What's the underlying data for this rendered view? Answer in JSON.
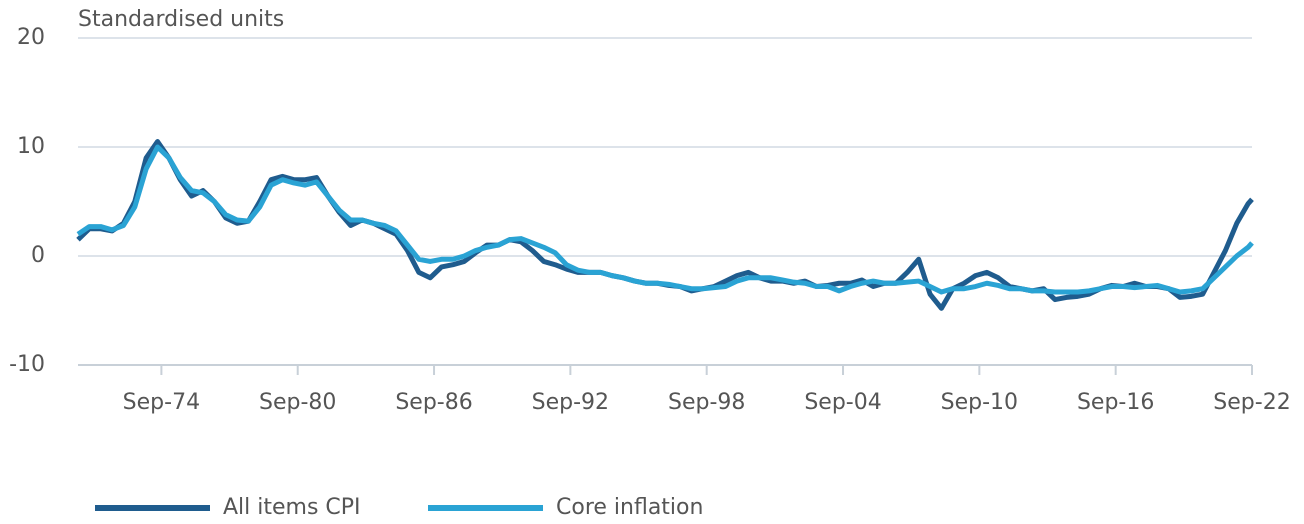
{
  "chart_data": {
    "type": "line",
    "y_axis_label": "Standardised units",
    "x": [
      1971,
      1971.5,
      1972,
      1972.5,
      1973,
      1973.5,
      1974,
      1974.5,
      1975,
      1975.5,
      1976,
      1976.5,
      1977,
      1977.5,
      1978,
      1978.5,
      1979,
      1979.5,
      1980,
      1980.5,
      1981,
      1981.5,
      1982,
      1982.5,
      1983,
      1983.5,
      1984,
      1984.5,
      1985,
      1985.5,
      1986,
      1986.5,
      1987,
      1987.5,
      1988,
      1988.5,
      1989,
      1989.5,
      1990,
      1990.5,
      1991,
      1991.5,
      1992,
      1992.5,
      1993,
      1993.5,
      1994,
      1994.5,
      1995,
      1995.5,
      1996,
      1996.5,
      1997,
      1997.5,
      1998,
      1998.5,
      1999,
      1999.5,
      2000,
      2000.5,
      2001,
      2001.5,
      2002,
      2002.5,
      2003,
      2003.5,
      2004,
      2004.5,
      2005,
      2005.5,
      2006,
      2006.5,
      2007,
      2007.5,
      2008,
      2008.5,
      2009,
      2009.5,
      2010,
      2010.5,
      2011,
      2011.5,
      2012,
      2012.5,
      2013,
      2013.5,
      2014,
      2014.5,
      2015,
      2015.5,
      2016,
      2016.5,
      2017,
      2017.5,
      2018,
      2018.5,
      2019,
      2019.5,
      2020,
      2020.5,
      2021,
      2021.5,
      2022,
      2022.5,
      2022.67
    ],
    "series": [
      {
        "name": "All items CPI",
        "color": "#1f5c8e",
        "values": [
          1.5,
          2.5,
          2.5,
          2.3,
          3,
          5,
          9,
          10.5,
          9,
          7,
          5.5,
          6,
          5,
          3.5,
          3,
          3.2,
          5,
          7,
          7.3,
          7,
          7,
          7.2,
          5.5,
          4,
          2.8,
          3.3,
          3,
          2.5,
          2,
          0.5,
          -1.5,
          -2,
          -1,
          -0.8,
          -0.5,
          0.3,
          1,
          1,
          1.5,
          1.3,
          0.5,
          -0.5,
          -0.8,
          -1.2,
          -1.5,
          -1.5,
          -1.5,
          -1.8,
          -2,
          -2.3,
          -2.5,
          -2.5,
          -2.7,
          -2.8,
          -3.2,
          -3,
          -2.8,
          -2.3,
          -1.8,
          -1.5,
          -2,
          -2.3,
          -2.3,
          -2.5,
          -2.3,
          -2.8,
          -2.7,
          -2.5,
          -2.5,
          -2.2,
          -2.8,
          -2.5,
          -2.5,
          -1.5,
          -0.3,
          -3.5,
          -4.8,
          -3,
          -2.5,
          -1.8,
          -1.5,
          -2,
          -2.8,
          -3,
          -3.2,
          -3,
          -4,
          -3.8,
          -3.7,
          -3.5,
          -3,
          -2.7,
          -2.8,
          -2.5,
          -2.8,
          -2.8,
          -3,
          -3.8,
          -3.7,
          -3.5,
          -1.5,
          0.5,
          3,
          4.8,
          5.2
        ]
      },
      {
        "name": "Core inflation",
        "color": "#2aa3d4",
        "values": [
          2,
          2.7,
          2.7,
          2.4,
          2.8,
          4.5,
          8,
          10,
          9,
          7.2,
          6,
          5.8,
          5,
          3.8,
          3.3,
          3.2,
          4.5,
          6.5,
          7,
          6.7,
          6.5,
          6.8,
          5.5,
          4.2,
          3.3,
          3.3,
          3,
          2.8,
          2.3,
          1,
          -0.3,
          -0.5,
          -0.3,
          -0.3,
          0,
          0.5,
          0.8,
          1,
          1.5,
          1.6,
          1.2,
          0.8,
          0.3,
          -0.8,
          -1.3,
          -1.5,
          -1.5,
          -1.8,
          -2,
          -2.3,
          -2.5,
          -2.5,
          -2.6,
          -2.8,
          -3,
          -3,
          -2.9,
          -2.8,
          -2.3,
          -2,
          -2,
          -2,
          -2.2,
          -2.4,
          -2.5,
          -2.8,
          -2.8,
          -3.2,
          -2.8,
          -2.5,
          -2.3,
          -2.5,
          -2.5,
          -2.4,
          -2.3,
          -2.8,
          -3.3,
          -3,
          -3,
          -2.8,
          -2.5,
          -2.7,
          -3,
          -3,
          -3.2,
          -3.2,
          -3.3,
          -3.3,
          -3.3,
          -3.2,
          -3,
          -2.8,
          -2.8,
          -2.9,
          -2.8,
          -2.7,
          -3,
          -3.3,
          -3.2,
          -3,
          -2,
          -1,
          0,
          0.8,
          1.2
        ]
      }
    ],
    "xlim": [
      1971,
      2022.67
    ],
    "xticks": [
      {
        "value": 1974.67,
        "label": "Sep-74"
      },
      {
        "value": 1980.67,
        "label": "Sep-80"
      },
      {
        "value": 1986.67,
        "label": "Sep-86"
      },
      {
        "value": 1992.67,
        "label": "Sep-92"
      },
      {
        "value": 1998.67,
        "label": "Sep-98"
      },
      {
        "value": 2004.67,
        "label": "Sep-04"
      },
      {
        "value": 2010.67,
        "label": "Sep-10"
      },
      {
        "value": 2016.67,
        "label": "Sep-16"
      },
      {
        "value": 2022.67,
        "label": "Sep-22"
      }
    ],
    "ylim": [
      -10,
      20
    ],
    "yticks": [
      -10,
      0,
      10,
      20
    ],
    "grid": true,
    "legend": "bottom"
  }
}
